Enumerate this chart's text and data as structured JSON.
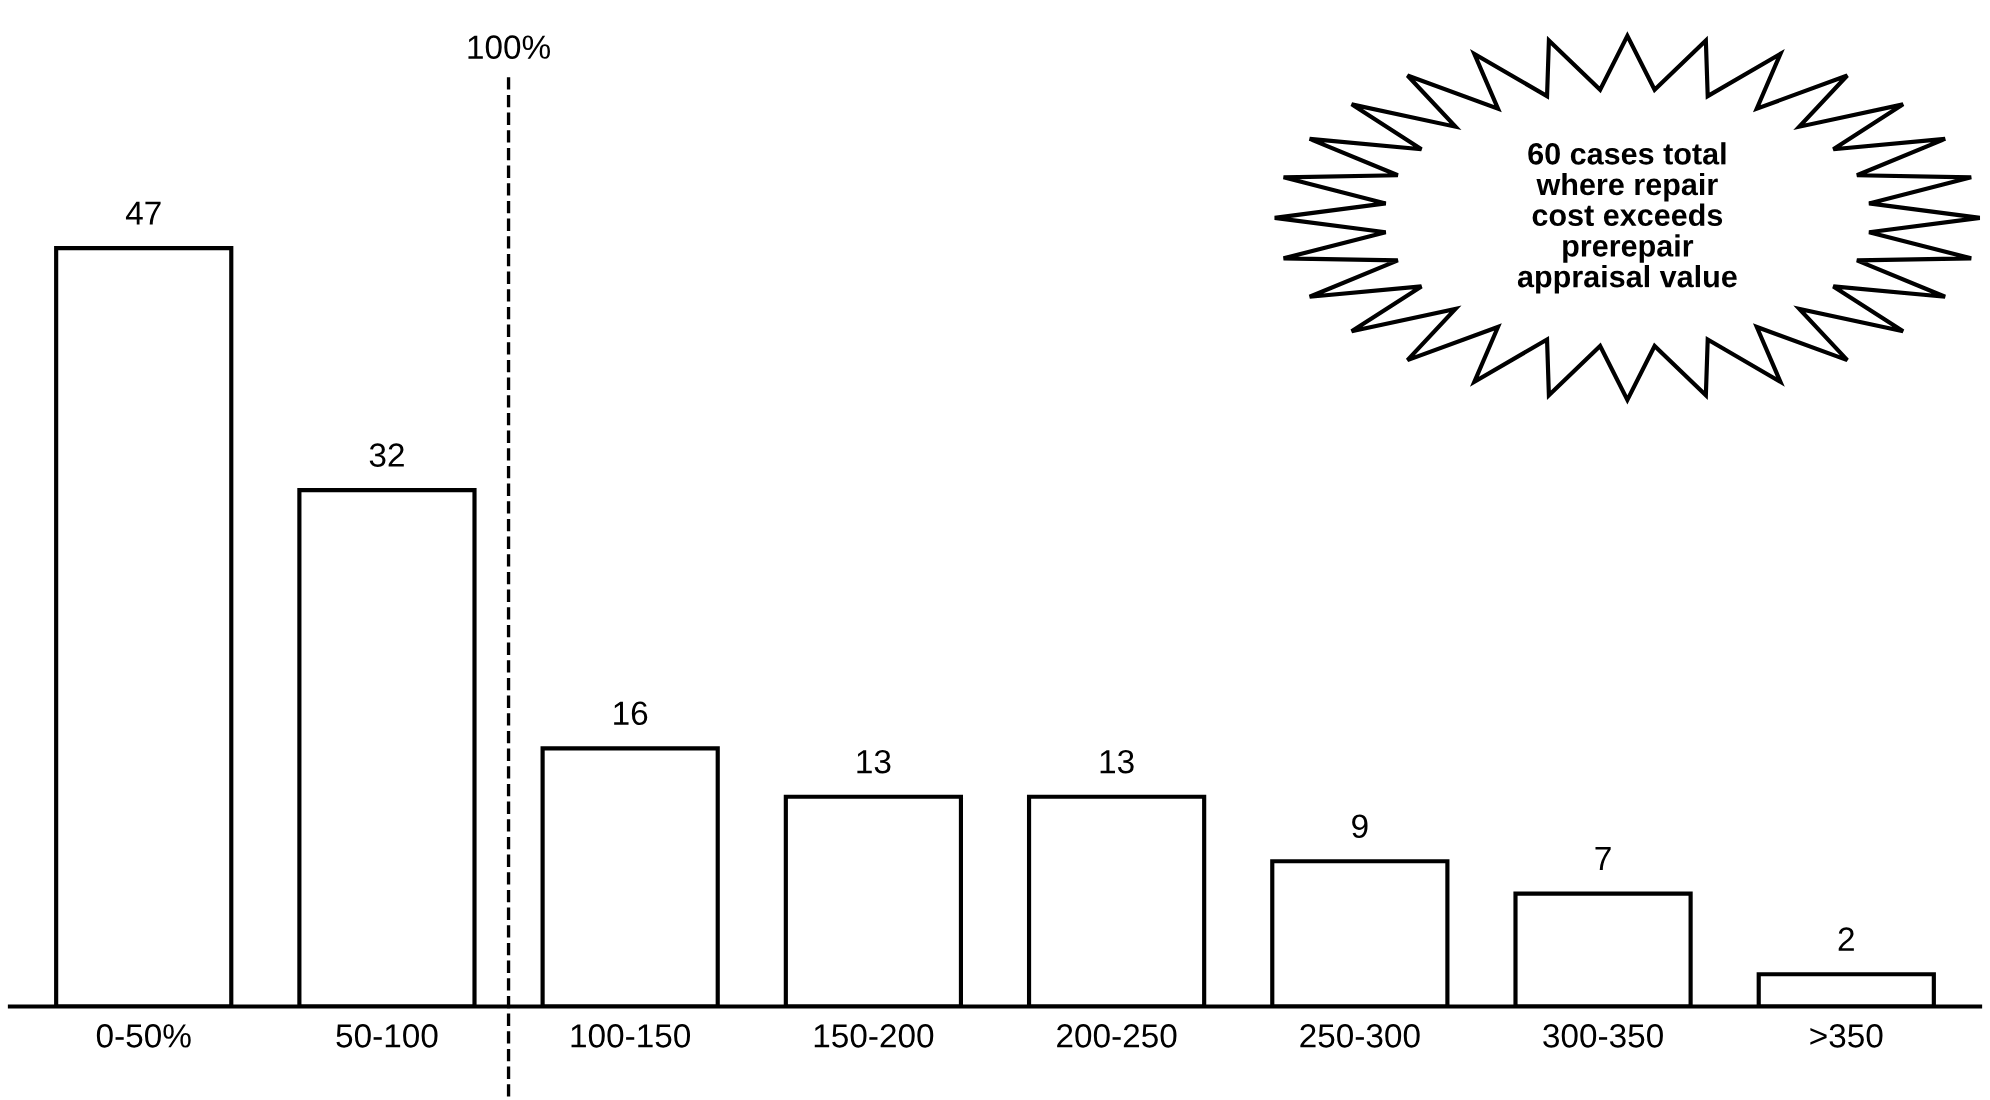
{
  "chart_data": {
    "type": "bar",
    "categories": [
      "0-50%",
      "50-100",
      "100-150",
      "150-200",
      "200-250",
      "250-300",
      "300-350",
      ">350"
    ],
    "values": [
      47,
      32,
      16,
      13,
      13,
      9,
      7,
      2
    ],
    "color": "#ffffff",
    "data_labels": true,
    "grid": false,
    "annotations": [
      "100%",
      "60 cases total\nwhere repair\ncost exceeds\nprerepair\nappraisal value"
    ]
  }
}
